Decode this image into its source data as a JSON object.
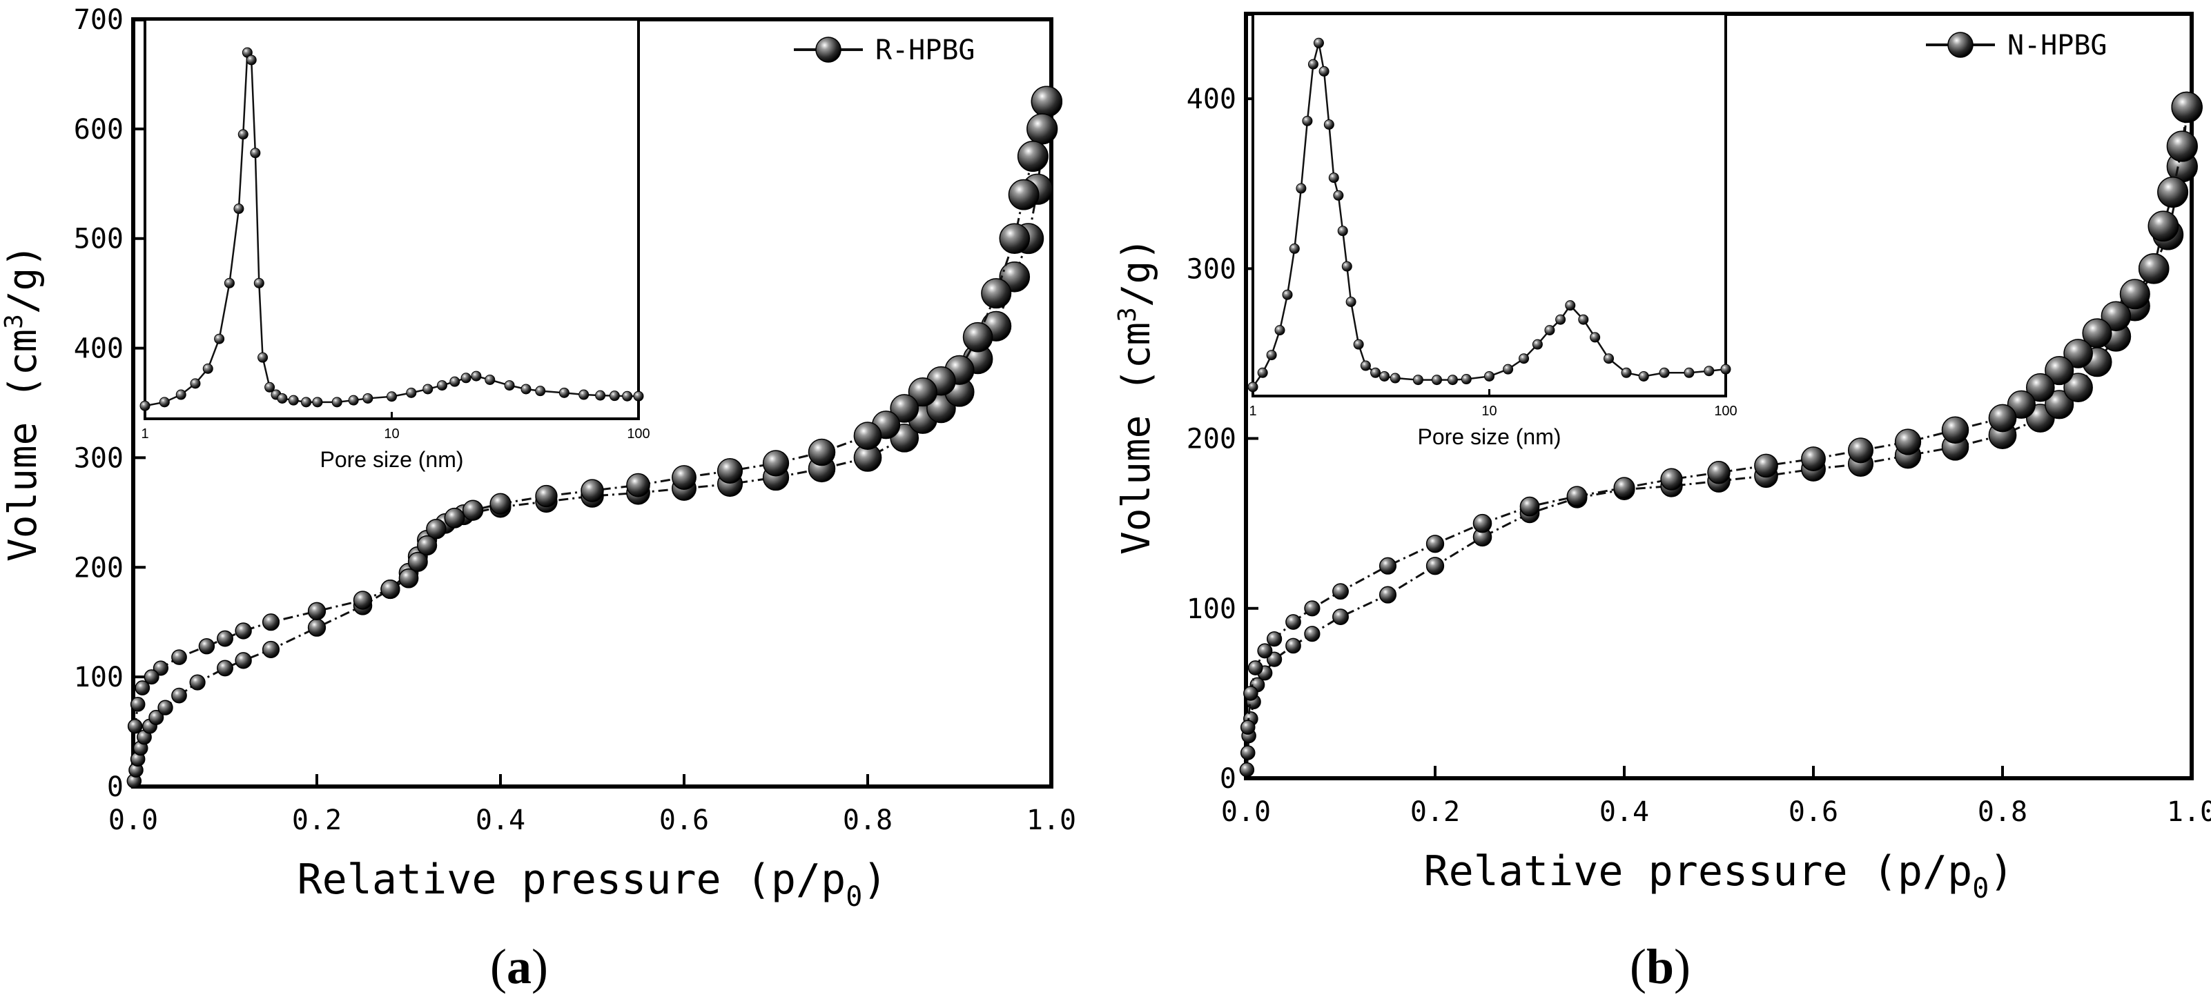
{
  "colors": {
    "axis": "#000000",
    "line": "#111111",
    "marker_fill": "#2b2b2b",
    "marker_highlight": "#ffffff",
    "background": "#ffffff"
  },
  "chart_data": [
    {
      "panel_label": "a",
      "type": "line",
      "legend": "R-HPBG",
      "xlabel": "Relative pressure (p/p",
      "xlabel_sub": "0",
      "xlabel_close": ")",
      "ylabel": "Volume (cm",
      "ylabel_sup": "3",
      "ylabel_end": "/g)",
      "xlim": [
        0,
        1.0
      ],
      "ylim": [
        0,
        700
      ],
      "xticks": [
        "0.0",
        "0.2",
        "0.4",
        "0.6",
        "0.8",
        "1.0"
      ],
      "yticks": [
        "0",
        "100",
        "200",
        "300",
        "400",
        "500",
        "600",
        "700"
      ],
      "series": [
        {
          "name": "adsorption",
          "x": [
            0.001,
            0.003,
            0.005,
            0.008,
            0.012,
            0.018,
            0.025,
            0.035,
            0.05,
            0.07,
            0.1,
            0.12,
            0.15,
            0.2,
            0.25,
            0.28,
            0.3,
            0.31,
            0.32,
            0.34,
            0.36,
            0.4,
            0.45,
            0.5,
            0.55,
            0.6,
            0.65,
            0.7,
            0.75,
            0.8,
            0.84,
            0.86,
            0.88,
            0.9,
            0.92,
            0.94,
            0.96,
            0.975,
            0.985,
            0.995
          ],
          "y": [
            5,
            15,
            25,
            35,
            45,
            55,
            63,
            72,
            83,
            95,
            108,
            115,
            125,
            145,
            165,
            180,
            195,
            210,
            225,
            240,
            248,
            255,
            260,
            265,
            268,
            272,
            276,
            282,
            290,
            300,
            318,
            335,
            345,
            360,
            390,
            420,
            465,
            500,
            545,
            625
          ]
        },
        {
          "name": "desorption",
          "x": [
            0.995,
            0.99,
            0.98,
            0.97,
            0.96,
            0.94,
            0.92,
            0.9,
            0.88,
            0.86,
            0.84,
            0.82,
            0.8,
            0.75,
            0.7,
            0.65,
            0.6,
            0.55,
            0.5,
            0.45,
            0.4,
            0.37,
            0.35,
            0.33,
            0.32,
            0.31,
            0.3,
            0.28,
            0.25,
            0.2,
            0.15,
            0.12,
            0.1,
            0.08,
            0.05,
            0.03,
            0.02,
            0.01,
            0.005,
            0.002
          ],
          "y": [
            625,
            600,
            575,
            540,
            500,
            450,
            410,
            380,
            370,
            360,
            345,
            330,
            320,
            305,
            295,
            288,
            282,
            275,
            270,
            265,
            258,
            252,
            245,
            235,
            220,
            205,
            190,
            180,
            170,
            160,
            150,
            142,
            135,
            128,
            118,
            108,
            100,
            90,
            75,
            55
          ]
        }
      ],
      "inset": {
        "xlabel": "Pore size (nm)",
        "xscale": "log",
        "xlim": [
          1,
          100
        ],
        "xticks": [
          "1",
          "10",
          "100"
        ],
        "x": [
          1,
          1.2,
          1.4,
          1.6,
          1.8,
          2.0,
          2.2,
          2.4,
          2.5,
          2.6,
          2.7,
          2.8,
          2.9,
          3.0,
          3.2,
          3.4,
          3.6,
          4.0,
          4.5,
          5,
          6,
          7,
          8,
          10,
          12,
          14,
          16,
          18,
          20,
          22,
          25,
          30,
          35,
          40,
          50,
          60,
          70,
          80,
          90,
          100
        ],
        "y": [
          0.02,
          0.03,
          0.05,
          0.08,
          0.12,
          0.2,
          0.35,
          0.55,
          0.75,
          0.97,
          0.95,
          0.7,
          0.35,
          0.15,
          0.07,
          0.05,
          0.04,
          0.035,
          0.03,
          0.03,
          0.03,
          0.035,
          0.04,
          0.045,
          0.055,
          0.065,
          0.075,
          0.085,
          0.095,
          0.1,
          0.09,
          0.075,
          0.065,
          0.06,
          0.055,
          0.05,
          0.048,
          0.047,
          0.046,
          0.046
        ]
      }
    },
    {
      "panel_label": "b",
      "type": "line",
      "legend": "N-HPBG",
      "xlabel": "Relative pressure (p/p",
      "xlabel_sub": "0",
      "xlabel_close": ")",
      "ylabel": "Volume (cm",
      "ylabel_sup": "3",
      "ylabel_end": "/g)",
      "xlim": [
        0,
        1.0
      ],
      "ylim": [
        0,
        450
      ],
      "xticks": [
        "0.0",
        "0.2",
        "0.4",
        "0.6",
        "0.8",
        "1.0"
      ],
      "yticks": [
        "0",
        "100",
        "200",
        "300",
        "400"
      ],
      "series": [
        {
          "name": "adsorption",
          "x": [
            0.001,
            0.002,
            0.003,
            0.005,
            0.008,
            0.012,
            0.02,
            0.03,
            0.05,
            0.07,
            0.1,
            0.15,
            0.2,
            0.25,
            0.3,
            0.35,
            0.4,
            0.45,
            0.5,
            0.55,
            0.6,
            0.65,
            0.7,
            0.75,
            0.8,
            0.84,
            0.86,
            0.88,
            0.9,
            0.92,
            0.94,
            0.96,
            0.975,
            0.99,
            0.995
          ],
          "y": [
            5,
            15,
            25,
            35,
            45,
            55,
            62,
            70,
            78,
            85,
            95,
            108,
            125,
            142,
            156,
            165,
            170,
            172,
            175,
            178,
            182,
            185,
            190,
            195,
            202,
            212,
            220,
            230,
            245,
            260,
            278,
            300,
            320,
            360,
            395
          ]
        },
        {
          "name": "desorption",
          "x": [
            0.995,
            0.99,
            0.98,
            0.97,
            0.96,
            0.94,
            0.92,
            0.9,
            0.88,
            0.86,
            0.84,
            0.82,
            0.8,
            0.75,
            0.7,
            0.65,
            0.6,
            0.55,
            0.5,
            0.45,
            0.4,
            0.35,
            0.3,
            0.25,
            0.2,
            0.15,
            0.1,
            0.07,
            0.05,
            0.03,
            0.02,
            0.01,
            0.005,
            0.002
          ],
          "y": [
            395,
            372,
            345,
            325,
            300,
            285,
            272,
            262,
            250,
            240,
            230,
            220,
            212,
            205,
            198,
            193,
            188,
            184,
            180,
            176,
            171,
            166,
            160,
            150,
            138,
            125,
            110,
            100,
            92,
            82,
            75,
            65,
            50,
            30
          ]
        }
      ],
      "inset": {
        "xlabel": "Pore size (nm)",
        "xscale": "log",
        "xlim": [
          1,
          100
        ],
        "xticks": [
          "1",
          "10",
          "100"
        ],
        "x": [
          1,
          1.1,
          1.2,
          1.3,
          1.4,
          1.5,
          1.6,
          1.7,
          1.8,
          1.9,
          2.0,
          2.1,
          2.2,
          2.3,
          2.4,
          2.5,
          2.6,
          2.8,
          3.0,
          3.3,
          3.6,
          4.0,
          5,
          6,
          7,
          8,
          10,
          12,
          14,
          16,
          18,
          20,
          22,
          25,
          28,
          32,
          38,
          45,
          55,
          70,
          85,
          100
        ],
        "y": [
          0.01,
          0.05,
          0.1,
          0.17,
          0.27,
          0.4,
          0.57,
          0.76,
          0.92,
          0.98,
          0.9,
          0.75,
          0.6,
          0.55,
          0.45,
          0.35,
          0.25,
          0.13,
          0.07,
          0.05,
          0.04,
          0.035,
          0.03,
          0.03,
          0.03,
          0.032,
          0.04,
          0.06,
          0.09,
          0.13,
          0.17,
          0.2,
          0.24,
          0.2,
          0.15,
          0.09,
          0.05,
          0.04,
          0.05,
          0.05,
          0.055,
          0.06
        ]
      }
    }
  ]
}
